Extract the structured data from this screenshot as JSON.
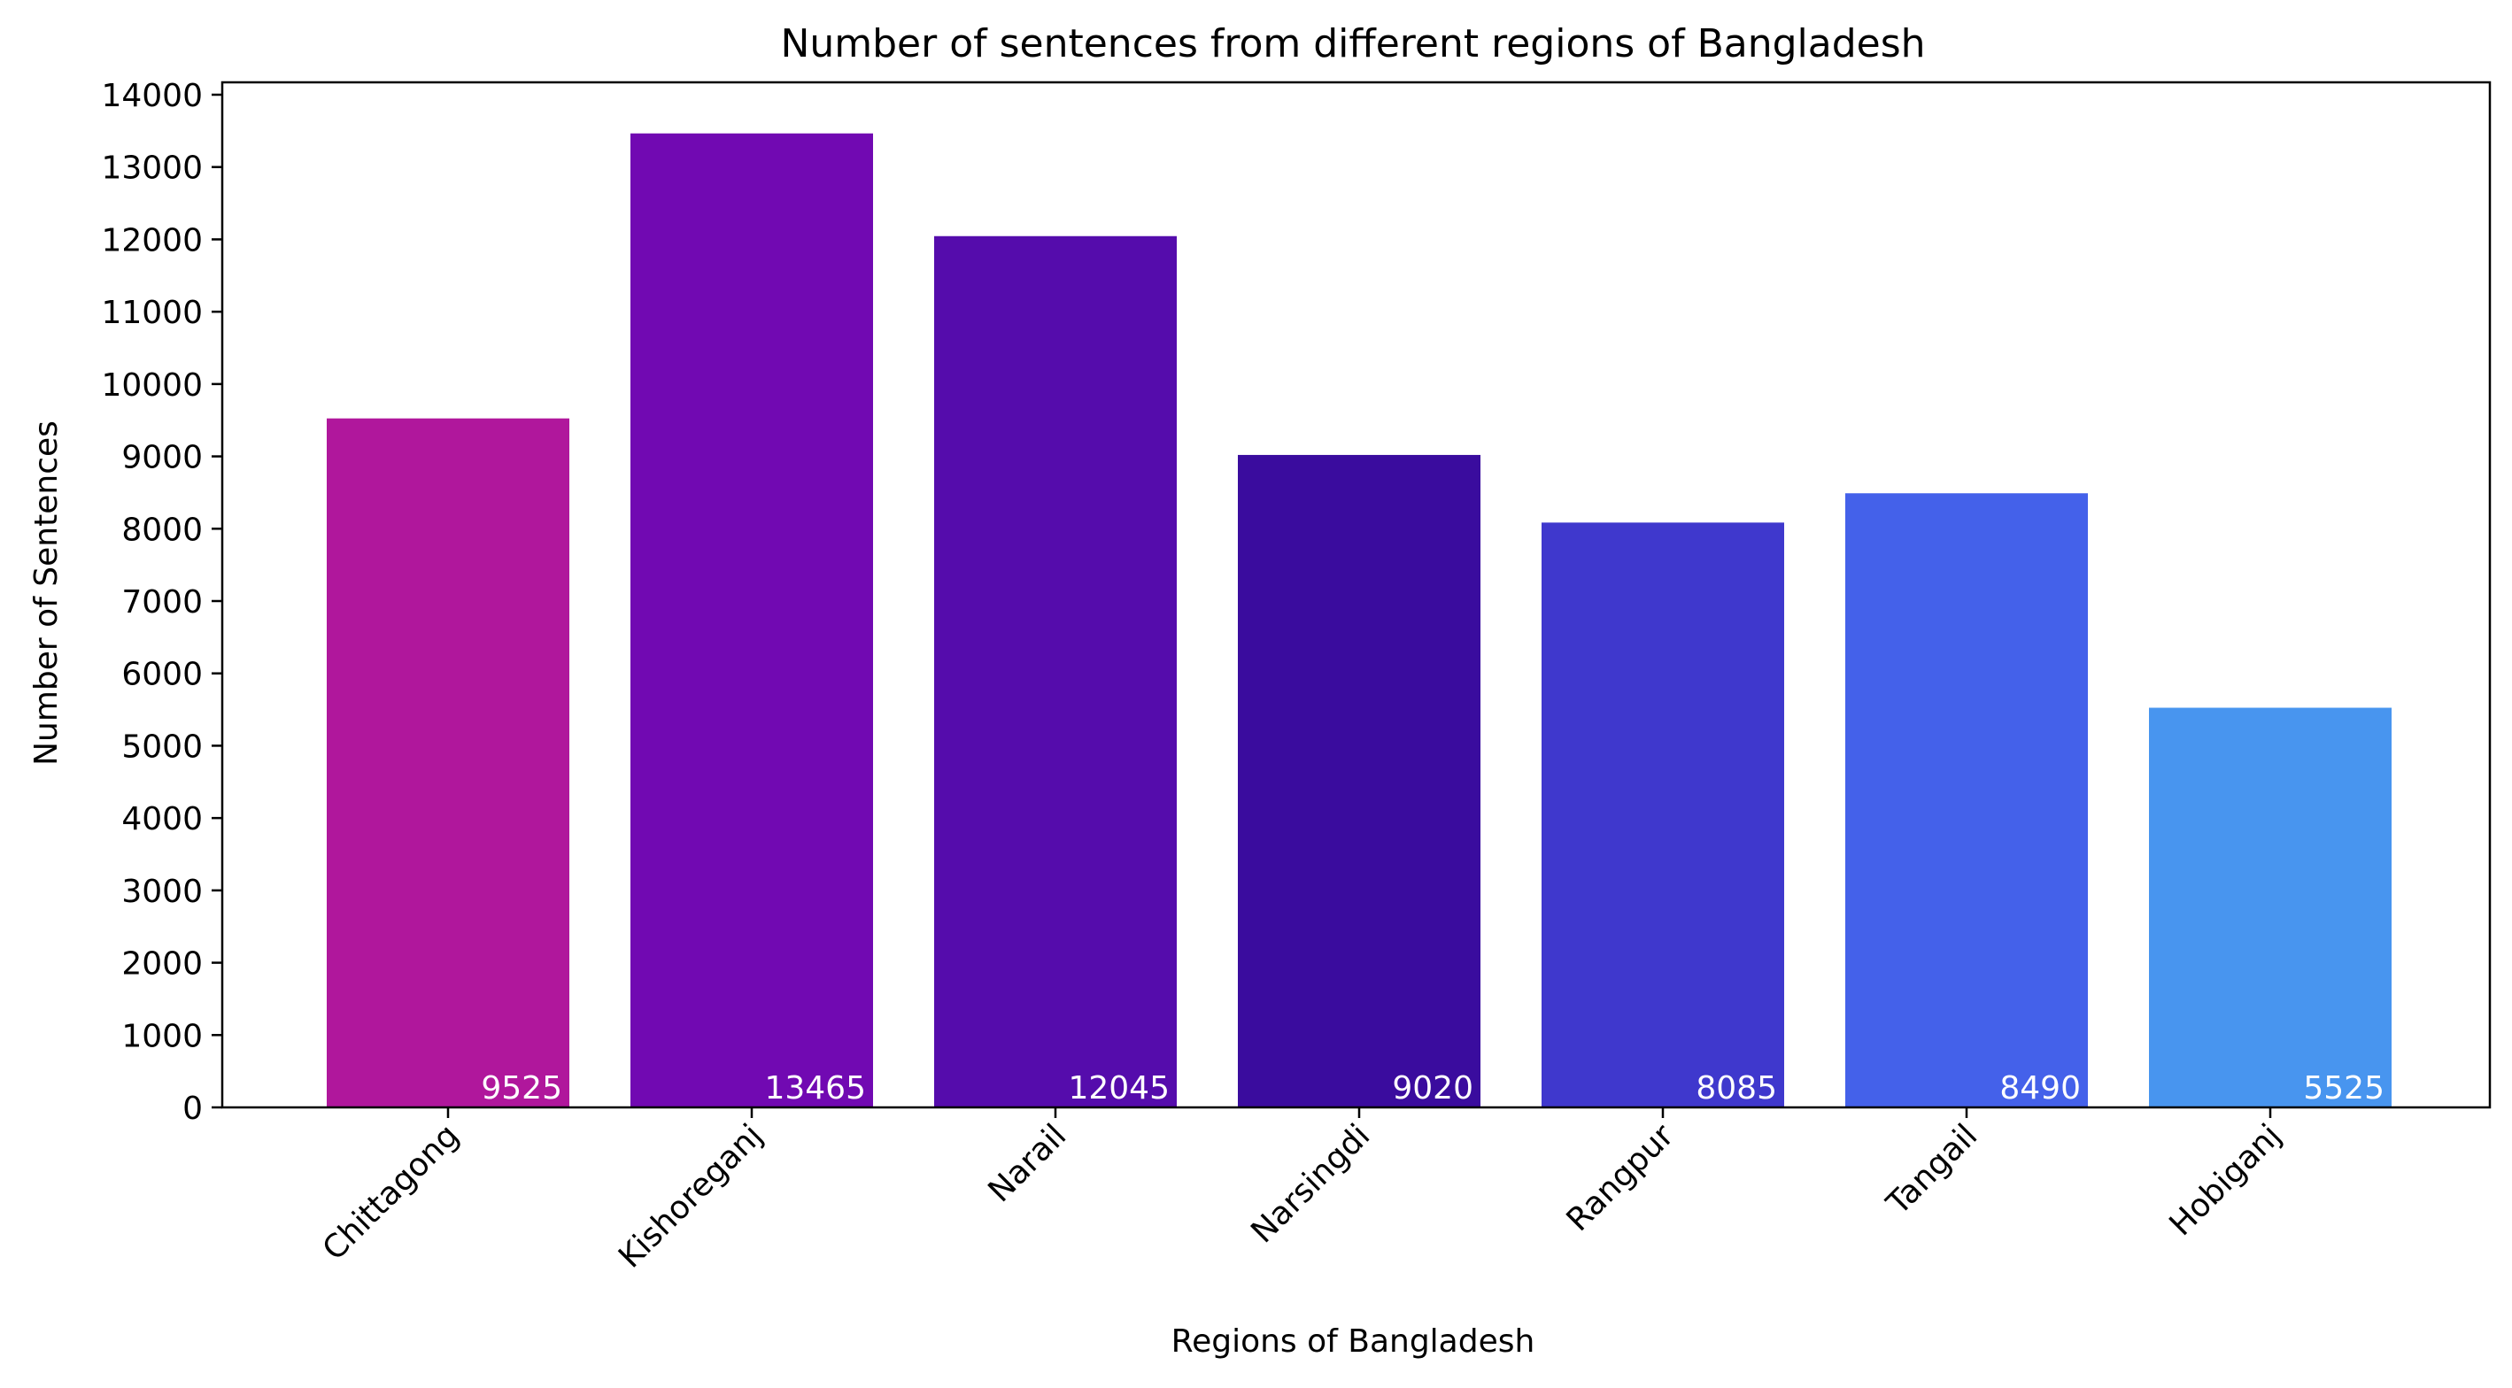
{
  "chart_data": {
    "type": "bar",
    "title": "Number of sentences from different regions of Bangladesh",
    "xlabel": "Regions of Bangladesh",
    "ylabel": "Number of Sentences",
    "categories": [
      "Chittagong",
      "Kishoreganj",
      "Narail",
      "Narsingdi",
      "Rangpur",
      "Tangail",
      "Hobiganj"
    ],
    "values": [
      9525,
      13465,
      12045,
      9020,
      8085,
      8490,
      5525
    ],
    "data_labels": [
      "9525",
      "13465",
      "12045",
      "9020",
      "8085",
      "8490",
      "5525"
    ],
    "colors": [
      "#b0179c",
      "#7109b2",
      "#550cac",
      "#3a0c9e",
      "#3f38cd",
      "#4461ea",
      "#4895ef"
    ],
    "yticks": [
      0,
      1000,
      2000,
      3000,
      4000,
      5000,
      6000,
      7000,
      8000,
      9000,
      10000,
      11000,
      12000,
      13000,
      14000
    ],
    "ylim": [
      0,
      14000
    ],
    "grid": false,
    "legend": "none"
  }
}
